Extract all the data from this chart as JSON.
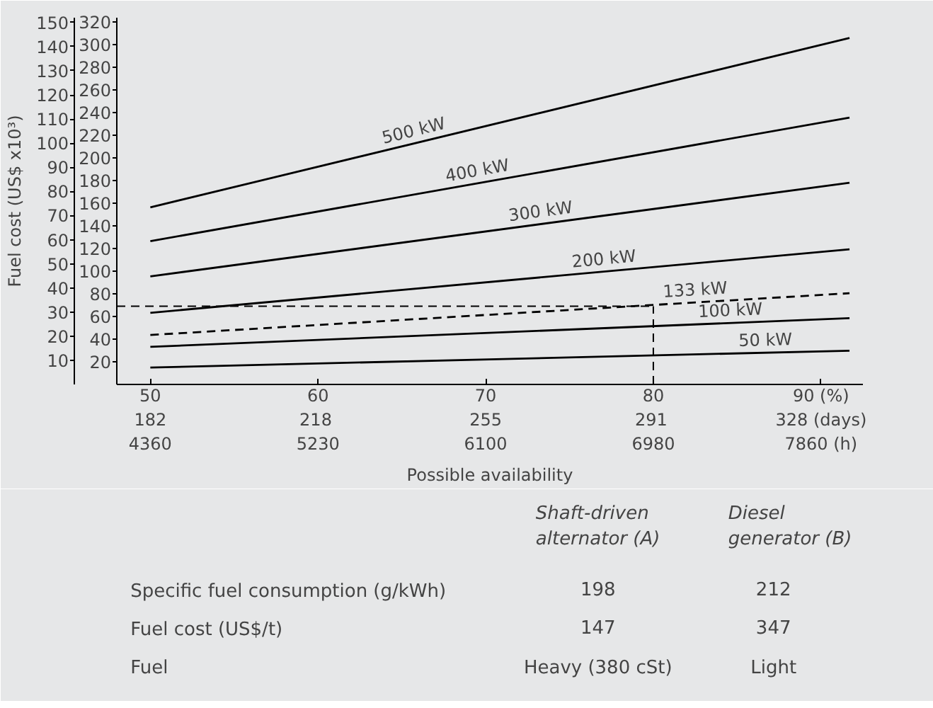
{
  "chart_data": {
    "type": "line",
    "ylabel": "Fuel cost (US$ x10³)",
    "xlabel": "Possible availability",
    "xlim": [
      48,
      92.5
    ],
    "ylim": [
      0,
      152
    ],
    "y2lim": [
      0,
      324
    ],
    "xticks": [
      50,
      60,
      70,
      80,
      {
        "value": 90,
        "label": "90 (%)"
      }
    ],
    "x2lim": [
      174.7,
      337.1
    ],
    "x2ticks": [
      182,
      218,
      255,
      291,
      {
        "value": 328,
        "label": "328 (days)"
      }
    ],
    "x": [
      50,
      91.7
    ],
    "yticks": [
      10,
      20,
      30,
      40,
      50,
      60,
      70,
      80,
      90,
      100,
      110,
      120,
      130,
      140,
      150
    ],
    "y2ticks": [
      20,
      40,
      60,
      80,
      100,
      120,
      140,
      160,
      180,
      200,
      220,
      240,
      260,
      280,
      300,
      320
    ],
    "series": [
      {
        "name": "500 kW",
        "color": "#000000",
        "values": [
          73.4,
          143.6
        ]
      },
      {
        "name": "400 kW",
        "color": "#000000",
        "values": [
          59.4,
          110.6
        ]
      },
      {
        "name": "300 kW",
        "color": "#000000",
        "values": [
          44.8,
          83.6
        ]
      },
      {
        "name": "200 kW",
        "color": "#000000",
        "values": [
          29.7,
          56
        ]
      },
      {
        "name": "133 kW",
        "color": "#000000",
        "values": [
          20.5,
          37.8
        ],
        "line_style": "dashed"
      },
      {
        "name": "100 kW",
        "color": "#000000",
        "values": [
          15.6,
          27.5
        ]
      },
      {
        "name": "50 kW",
        "color": "#000000",
        "values": [
          7,
          14
        ]
      }
    ],
    "ref_lines": [
      {
        "axis": "y",
        "value": 32.4,
        "line_style": "dashed",
        "color": "#000000"
      },
      {
        "axis": "x",
        "value": 80,
        "line_style": "dashed",
        "color": "#000000"
      }
    ],
    "line_style": "solid",
    "annotations": [
      "Shaft-driven\nalternator (A)",
      "Diesel\ngenerator (B)",
      "Specific fuel consumption (g/kWh)",
      "198",
      "212",
      "Fuel cost (US$/t)",
      "147",
      "347",
      "Fuel",
      "Heavy (380 cSt)",
      "Light",
      "4360",
      "5230",
      "6100",
      "6980",
      "7860 (h)"
    ]
  }
}
